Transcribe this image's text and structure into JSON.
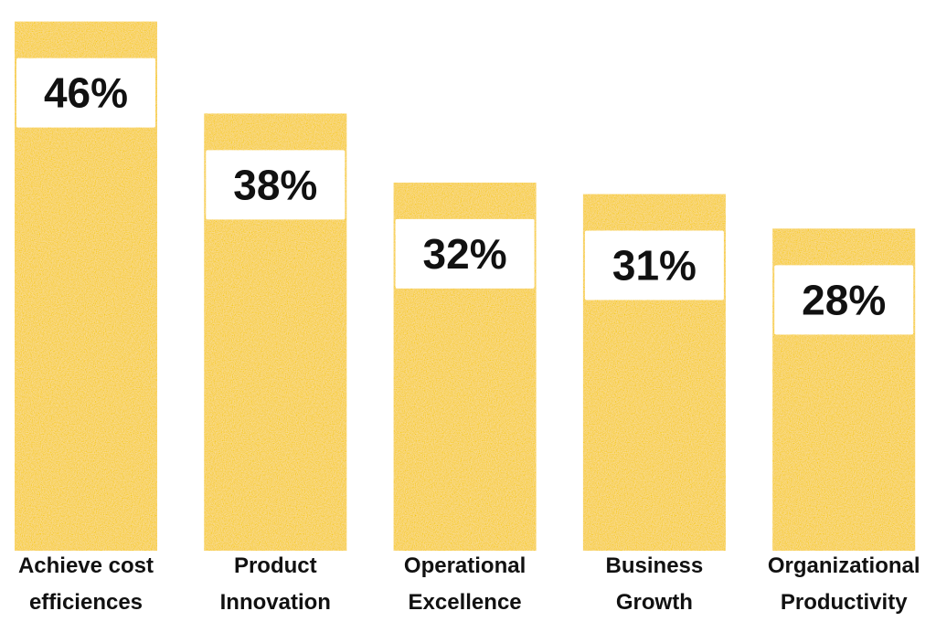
{
  "chart_data": {
    "type": "bar",
    "categories": [
      [
        "Achieve cost",
        "efficiences"
      ],
      [
        "Product",
        "Innovation"
      ],
      [
        "Operational",
        "Excellence"
      ],
      [
        "Business",
        "Growth"
      ],
      [
        "Organizational",
        "Productivity"
      ]
    ],
    "values": [
      46,
      38,
      32,
      31,
      28
    ],
    "value_labels": [
      "46%",
      "38%",
      "32%",
      "31%",
      "28%"
    ],
    "ylim": [
      0,
      47
    ],
    "grid": false,
    "colors": {
      "bar": "#F7CB05",
      "label_box": "#FFFFFF",
      "text": "#111111"
    }
  }
}
